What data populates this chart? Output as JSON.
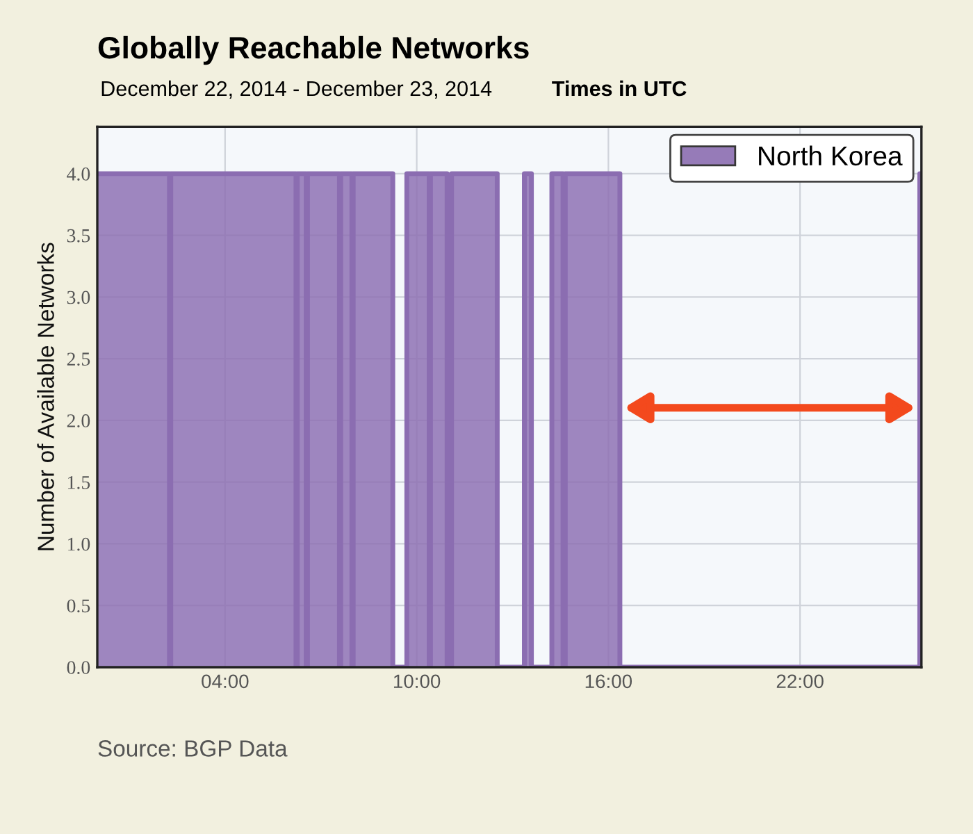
{
  "chart_data": {
    "type": "area",
    "title": "Globally Reachable Networks",
    "subtitle": "December 22, 2014 - December 23, 2014",
    "ylabel": "Number of Available Networks",
    "annotations": [
      "Times in UTC",
      "Source: BGP Data"
    ],
    "series": [
      {
        "name": "North Korea",
        "color": "#8b6db1",
        "x": [
          0,
          2.26,
          2.26,
          2.3,
          2.3,
          6.22,
          6.22,
          6.26,
          6.26,
          6.54,
          6.54,
          6.58,
          6.58,
          7.58,
          7.58,
          7.62,
          7.62,
          7.97,
          7.97,
          8.01,
          8.01,
          9.25,
          9.25,
          9.69,
          9.69,
          10.39,
          10.39,
          10.43,
          10.43,
          10.95,
          10.95,
          11.09,
          11.09,
          12.52,
          12.52,
          13.37,
          13.37,
          13.59,
          13.59,
          14.23,
          14.23,
          14.58,
          14.58,
          14.65,
          14.65,
          16.36,
          16.36,
          25.75,
          25.75,
          25.8
        ],
        "values": [
          4,
          4,
          0,
          0,
          4,
          4,
          0,
          0,
          4,
          4,
          0,
          0,
          4,
          4,
          0,
          0,
          4,
          4,
          0,
          0,
          4,
          4,
          0,
          0,
          4,
          4,
          0,
          0,
          4,
          4,
          0,
          0,
          4,
          4,
          0,
          0,
          4,
          4,
          0,
          0,
          4,
          4,
          0,
          0,
          4,
          4,
          0,
          0,
          4,
          4
        ]
      }
    ],
    "xlim": [
      0,
      25.8
    ],
    "xticks": [
      {
        "value": 4,
        "label": "04:00"
      },
      {
        "value": 10,
        "label": "10:00"
      },
      {
        "value": 16,
        "label": "16:00"
      },
      {
        "value": 22,
        "label": "22:00"
      }
    ],
    "ylim": [
      0,
      4.38
    ],
    "yticks": [
      {
        "value": 0,
        "label": "0.0"
      },
      {
        "value": 0.5,
        "label": "0.5"
      },
      {
        "value": 1,
        "label": "1.0"
      },
      {
        "value": 1.5,
        "label": "1.5"
      },
      {
        "value": 2,
        "label": "2.0"
      },
      {
        "value": 2.5,
        "label": "2.5"
      },
      {
        "value": 3,
        "label": "3.0"
      },
      {
        "value": 3.5,
        "label": "3.5"
      },
      {
        "value": 4,
        "label": "4.0"
      }
    ],
    "grid": true,
    "legend": "top right"
  }
}
